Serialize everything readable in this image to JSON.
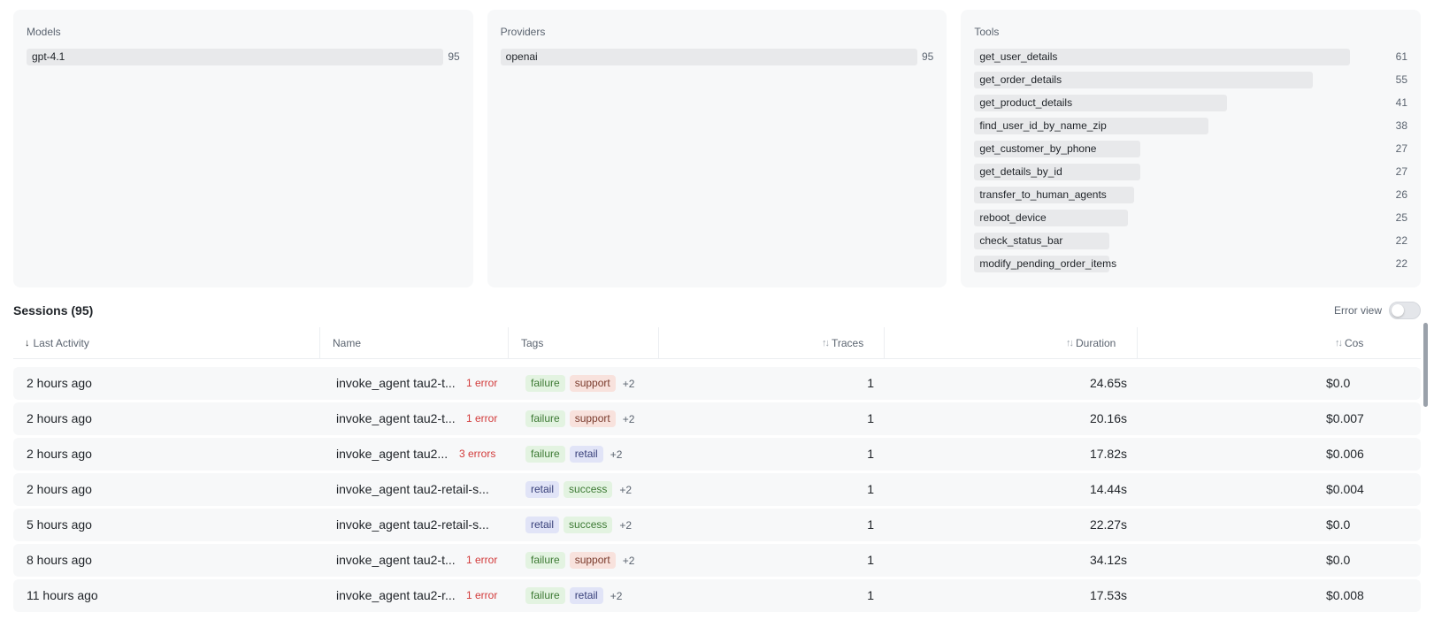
{
  "panels": {
    "models": {
      "title": "Models",
      "max": 95,
      "items": [
        {
          "label": "gpt-4.1",
          "count": 95
        }
      ]
    },
    "providers": {
      "title": "Providers",
      "max": 95,
      "items": [
        {
          "label": "openai",
          "count": 95
        }
      ]
    },
    "tools": {
      "title": "Tools",
      "max": 61,
      "items": [
        {
          "label": "get_user_details",
          "count": 61
        },
        {
          "label": "get_order_details",
          "count": 55
        },
        {
          "label": "get_product_details",
          "count": 41
        },
        {
          "label": "find_user_id_by_name_zip",
          "count": 38
        },
        {
          "label": "get_customer_by_phone",
          "count": 27
        },
        {
          "label": "get_details_by_id",
          "count": 27
        },
        {
          "label": "transfer_to_human_agents",
          "count": 26
        },
        {
          "label": "reboot_device",
          "count": 25
        },
        {
          "label": "check_status_bar",
          "count": 22
        },
        {
          "label": "modify_pending_order_items",
          "count": 22
        }
      ]
    }
  },
  "sessions": {
    "title": "Sessions (95)",
    "error_view_label": "Error view",
    "error_view_on": false,
    "columns": {
      "last_activity": "Last Activity",
      "name": "Name",
      "tags": "Tags",
      "traces": "Traces",
      "duration": "Duration",
      "cost": "Cos"
    },
    "rows": [
      {
        "last_activity": "2 hours ago",
        "name": "invoke_agent tau2-t...",
        "errors": "1 error",
        "tags": [
          "failure",
          "support"
        ],
        "more": "+2",
        "traces": "1",
        "duration": "24.65s",
        "cost": "$0.0"
      },
      {
        "last_activity": "2 hours ago",
        "name": "invoke_agent tau2-t...",
        "errors": "1 error",
        "tags": [
          "failure",
          "support"
        ],
        "more": "+2",
        "traces": "1",
        "duration": "20.16s",
        "cost": "$0.007"
      },
      {
        "last_activity": "2 hours ago",
        "name": "invoke_agent tau2...",
        "errors": "3 errors",
        "tags": [
          "failure",
          "retail"
        ],
        "more": "+2",
        "traces": "1",
        "duration": "17.82s",
        "cost": "$0.006"
      },
      {
        "last_activity": "2 hours ago",
        "name": "invoke_agent tau2-retail-s...",
        "errors": "",
        "tags": [
          "retail",
          "success"
        ],
        "more": "+2",
        "traces": "1",
        "duration": "14.44s",
        "cost": "$0.004"
      },
      {
        "last_activity": "5 hours ago",
        "name": "invoke_agent tau2-retail-s...",
        "errors": "",
        "tags": [
          "retail",
          "success"
        ],
        "more": "+2",
        "traces": "1",
        "duration": "22.27s",
        "cost": "$0.0"
      },
      {
        "last_activity": "8 hours ago",
        "name": "invoke_agent tau2-t...",
        "errors": "1 error",
        "tags": [
          "failure",
          "support"
        ],
        "more": "+2",
        "traces": "1",
        "duration": "34.12s",
        "cost": "$0.0"
      },
      {
        "last_activity": "11 hours ago",
        "name": "invoke_agent tau2-r...",
        "errors": "1 error",
        "tags": [
          "failure",
          "retail"
        ],
        "more": "+2",
        "traces": "1",
        "duration": "17.53s",
        "cost": "$0.008"
      }
    ]
  }
}
